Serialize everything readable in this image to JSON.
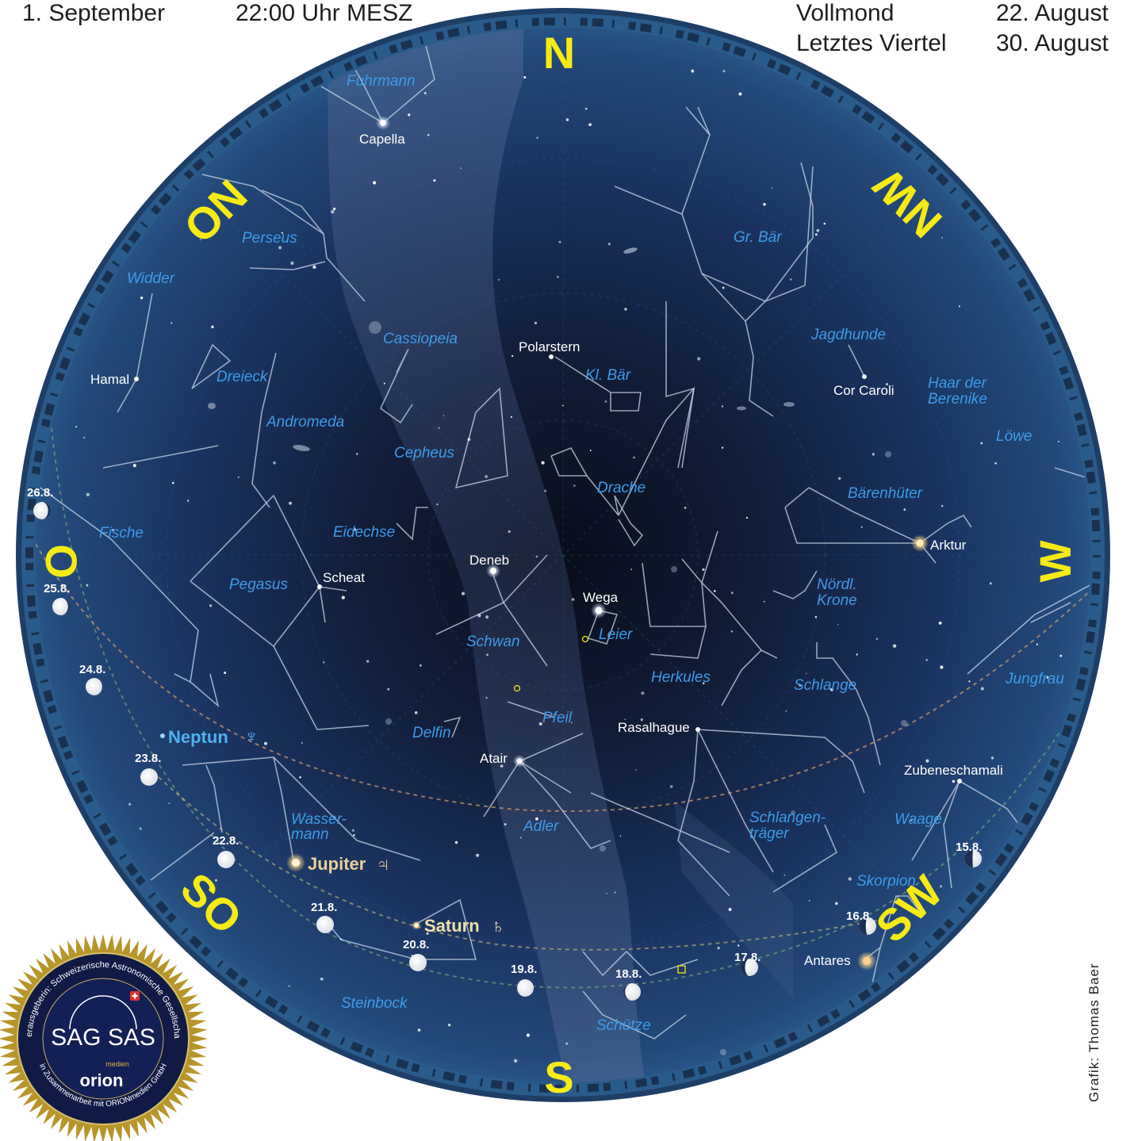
{
  "header": {
    "date": "1. September",
    "time": "22:00 Uhr MESZ",
    "phase1_name": "Vollmond",
    "phase1_date": "22. August",
    "phase2_name": "Letztes Viertel",
    "phase2_date": "30. August"
  },
  "directions": {
    "n": "N",
    "s": "S",
    "o": "O",
    "w": "W",
    "no": "NO",
    "nw": "NW",
    "so": "SO",
    "sw": "SW"
  },
  "constellations": {
    "fuhrmann": "Fuhrmann",
    "perseus": "Perseus",
    "widder": "Widder",
    "cassiopeia": "Cassiopeia",
    "dreieck": "Dreieck",
    "andromeda": "Andromeda",
    "cepheus": "Cepheus",
    "fische": "Fische",
    "eidechse": "Eidechse",
    "pegasus": "Pegasus",
    "delfin": "Delfin",
    "schwan": "Schwan",
    "pfeil": "Pfeil",
    "adler": "Adler",
    "wasser1": "Wasser-",
    "wasser2": "mann",
    "steinbock": "Steinbock",
    "schuetze": "Schütze",
    "leier": "Leier",
    "kl_baer": "Kl. Bär",
    "drache": "Drache",
    "herkules": "Herkules",
    "gr_baer": "Gr. Bär",
    "jagdhunde": "Jagdhunde",
    "haar1": "Haar der",
    "haar2": "Berenike",
    "loewe": "Löwe",
    "baerenhueter": "Bärenhüter",
    "noerdl1": "Nördl.",
    "noerdl2": "Krone",
    "schlange": "Schlange",
    "jungfrau": "Jungfrau",
    "schlangen1": "Schlangen-",
    "schlangen2": "träger",
    "waage": "Waage",
    "skorpion": "Skorpion"
  },
  "stars": {
    "capella": "Capella",
    "hamal": "Hamal",
    "polarstern": "Polarstern",
    "cor_caroli": "Cor Caroli",
    "deneb": "Deneb",
    "scheat": "Scheat",
    "wega": "Wega",
    "arktur": "Arktur",
    "rasalhague": "Rasalhague",
    "atair": "Atair",
    "zubeneschamali": "Zubeneschamali",
    "antares": "Antares"
  },
  "planets": {
    "neptun": "Neptun",
    "neptun_symbol": "♆",
    "jupiter": "Jupiter",
    "jupiter_symbol": "♃",
    "saturn": "Saturn",
    "saturn_symbol": "♄"
  },
  "moon_dates": {
    "d15": "15.8.",
    "d16": "16.8.",
    "d17": "17.8.",
    "d18": "18.8.",
    "d19": "19.8.",
    "d20": "20.8.",
    "d21": "21.8.",
    "d22": "22.8.",
    "d23": "23.8.",
    "d24": "24.8.",
    "d25": "25.8.",
    "d26": "26.8."
  },
  "badge": {
    "ring_text_top": "Herausgeberin: Schweizerische Astronomische Gesellschaft",
    "ring_text_bottom": "in Zusammenarbeit mit ORIONmedien GmbH",
    "main": "SAG SAS",
    "medien": "medien",
    "orion": "orion"
  },
  "credit": "Grafik: Thomas Baer",
  "colors": {
    "sky_center": "#0d1426",
    "sky_edge": "#234f82",
    "horizon": "#2b5f8e",
    "constellation_label": "#3e9bea",
    "direction": "#f5ea14",
    "neptune": "#4fb0f0",
    "jupiter_saturn": "#e8cf9a",
    "badge_gold": "#b8952b",
    "badge_navy": "#101a44"
  }
}
